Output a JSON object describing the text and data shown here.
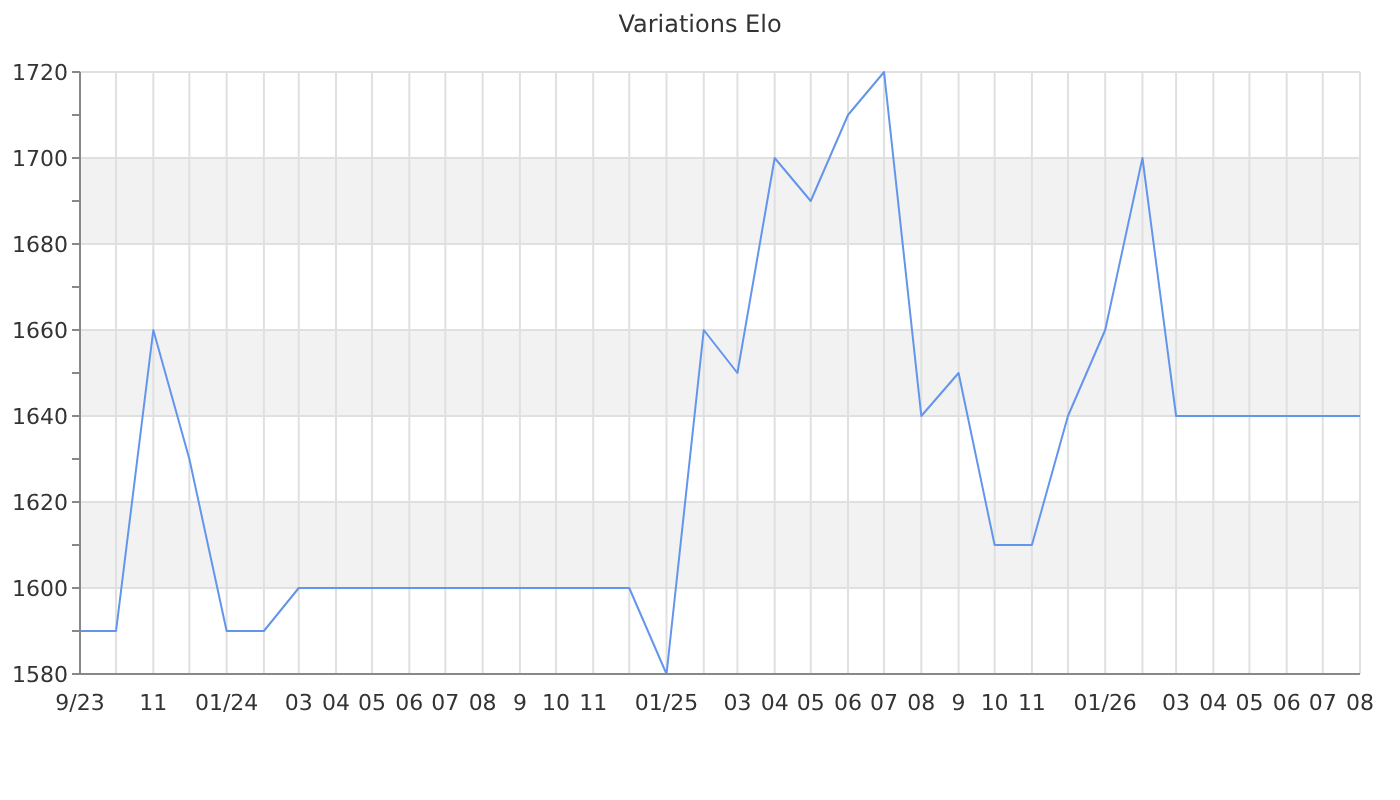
{
  "chart_data": {
    "type": "line",
    "title": "Variations Elo",
    "x": [
      "2023-09",
      "2023-10",
      "2023-11",
      "2023-12",
      "2024-01",
      "2024-02",
      "2024-03",
      "2024-04",
      "2024-05",
      "2024-06",
      "2024-07",
      "2024-08",
      "2024-09",
      "2024-10",
      "2024-11",
      "2024-12",
      "2025-01",
      "2025-02",
      "2025-03",
      "2025-04",
      "2025-05",
      "2025-06",
      "2025-07",
      "2025-08",
      "2025-09",
      "2025-10",
      "2025-11",
      "2025-12",
      "2026-01",
      "2026-02",
      "2026-03",
      "2026-04",
      "2026-05",
      "2026-06",
      "2026-07",
      "2026-08"
    ],
    "series": [
      {
        "color": "#6495ed",
        "values": [
          1590,
          1590,
          1660,
          1630,
          1590,
          1590,
          1600,
          1600,
          1600,
          1600,
          1600,
          1600,
          1600,
          1600,
          1600,
          1600,
          1580,
          1660,
          1650,
          1700,
          1690,
          1710,
          1720,
          1640,
          1650,
          1610,
          1610,
          1640,
          1660,
          1700,
          1640,
          1640,
          1640,
          1640,
          1640,
          1640
        ]
      }
    ],
    "xlim": [
      "2023-09",
      "2026-08"
    ],
    "xticks": [
      {
        "value": "2023-09",
        "label": "9/23"
      },
      {
        "value": "2023-10",
        "label": null
      },
      {
        "value": "2023-11",
        "label": "11"
      },
      {
        "value": "2023-12",
        "label": null
      },
      {
        "value": "2024-01",
        "label": "01/24"
      },
      {
        "value": "2024-02",
        "label": null
      },
      {
        "value": "2024-03",
        "label": "03"
      },
      {
        "value": "2024-04",
        "label": "04"
      },
      {
        "value": "2024-05",
        "label": "05"
      },
      {
        "value": "2024-06",
        "label": "06"
      },
      {
        "value": "2024-07",
        "label": "07"
      },
      {
        "value": "2024-08",
        "label": "08"
      },
      {
        "value": "2024-09",
        "label": "9"
      },
      {
        "value": "2024-10",
        "label": "10"
      },
      {
        "value": "2024-11",
        "label": "11"
      },
      {
        "value": "2024-12",
        "label": null
      },
      {
        "value": "2025-01",
        "label": "01/25"
      },
      {
        "value": "2025-02",
        "label": null
      },
      {
        "value": "2025-03",
        "label": "03"
      },
      {
        "value": "2025-04",
        "label": "04"
      },
      {
        "value": "2025-05",
        "label": "05"
      },
      {
        "value": "2025-06",
        "label": "06"
      },
      {
        "value": "2025-07",
        "label": "07"
      },
      {
        "value": "2025-08",
        "label": "08"
      },
      {
        "value": "2025-09",
        "label": "9"
      },
      {
        "value": "2025-10",
        "label": "10"
      },
      {
        "value": "2025-11",
        "label": "11"
      },
      {
        "value": "2025-12",
        "label": null
      },
      {
        "value": "2026-01",
        "label": "01/26"
      },
      {
        "value": "2026-02",
        "label": null
      },
      {
        "value": "2026-03",
        "label": "03"
      },
      {
        "value": "2026-04",
        "label": "04"
      },
      {
        "value": "2026-05",
        "label": "05"
      },
      {
        "value": "2026-06",
        "label": "06"
      },
      {
        "value": "2026-07",
        "label": "07"
      },
      {
        "value": "2026-08",
        "label": "08"
      }
    ],
    "ylim": [
      1580,
      1720
    ],
    "yticks": [
      1580,
      {
        "value": 1590,
        "label": null
      },
      1600,
      {
        "value": 1610,
        "label": null
      },
      1620,
      {
        "value": 1630,
        "label": null
      },
      1640,
      {
        "value": 1650,
        "label": null
      },
      1660,
      {
        "value": 1670,
        "label": null
      },
      1680,
      {
        "value": 1690,
        "label": null
      },
      1700,
      {
        "value": 1710,
        "label": null
      },
      1720
    ],
    "grid": true,
    "marker": "none",
    "line_style": "solid"
  }
}
